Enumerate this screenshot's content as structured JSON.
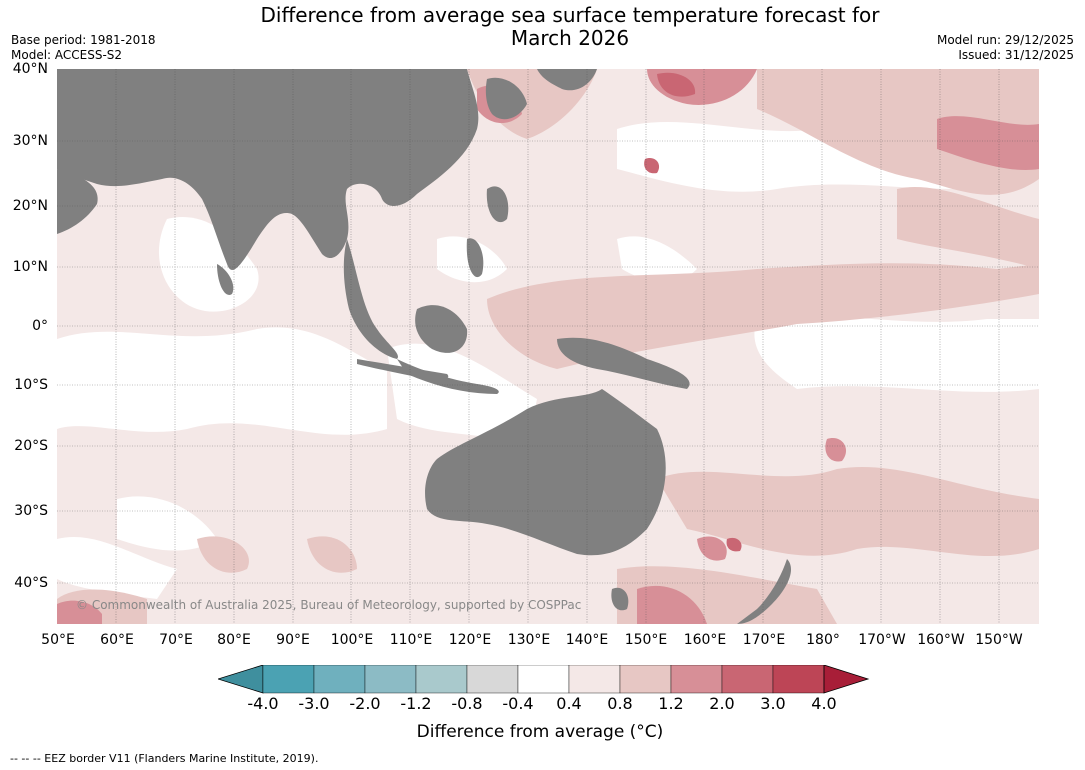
{
  "header": {
    "title_line1": "Difference from average sea surface temperature forecast for",
    "title_line2": "March 2026",
    "base_period": "Base period: 1981-2018",
    "model": "Model: ACCESS-S2",
    "model_run": "Model run: 29/12/2025",
    "issued": "Issued: 31/12/2025"
  },
  "map": {
    "lat_labels": [
      "40°N",
      "30°N",
      "20°N",
      "10°N",
      "0°",
      "10°S",
      "20°S",
      "30°S",
      "40°S"
    ],
    "lon_labels": [
      "50°E",
      "60°E",
      "70°E",
      "80°E",
      "90°E",
      "100°E",
      "110°E",
      "120°E",
      "130°E",
      "140°E",
      "150°E",
      "160°E",
      "170°E",
      "180°",
      "170°W",
      "160°W",
      "150°W"
    ],
    "copyright": "© Commonwealth of Australia 2025, Bureau of Meteorology, supported by COSPPac",
    "colors": {
      "land": "#808080",
      "anom_0_4_0_8": "#f4e8e7",
      "anom_0_8_1_2": "#e7c7c4",
      "anom_1_2_2_0": "#d78f97",
      "anom_2_0_3_0": "#c96673",
      "neutral": "#ffffff"
    }
  },
  "colorbar": {
    "ticks": [
      "-4.0",
      "-3.0",
      "-2.0",
      "-1.2",
      "-0.8",
      "-0.4",
      "0.4",
      "0.8",
      "1.2",
      "2.0",
      "3.0",
      "4.0"
    ],
    "colors": [
      "#3f8f9e",
      "#4ba2b3",
      "#6fb0be",
      "#8cbbc5",
      "#a9c9cc",
      "#d8d8d8",
      "#ffffff",
      "#f4e8e7",
      "#e7c7c4",
      "#d78f97",
      "#c96673",
      "#bd4556",
      "#a81e38"
    ],
    "label": "Difference from average (°C)"
  },
  "footer": {
    "eez_note": "--  --  -- EEZ border V11 (Flanders Marine Institute, 2019)."
  }
}
